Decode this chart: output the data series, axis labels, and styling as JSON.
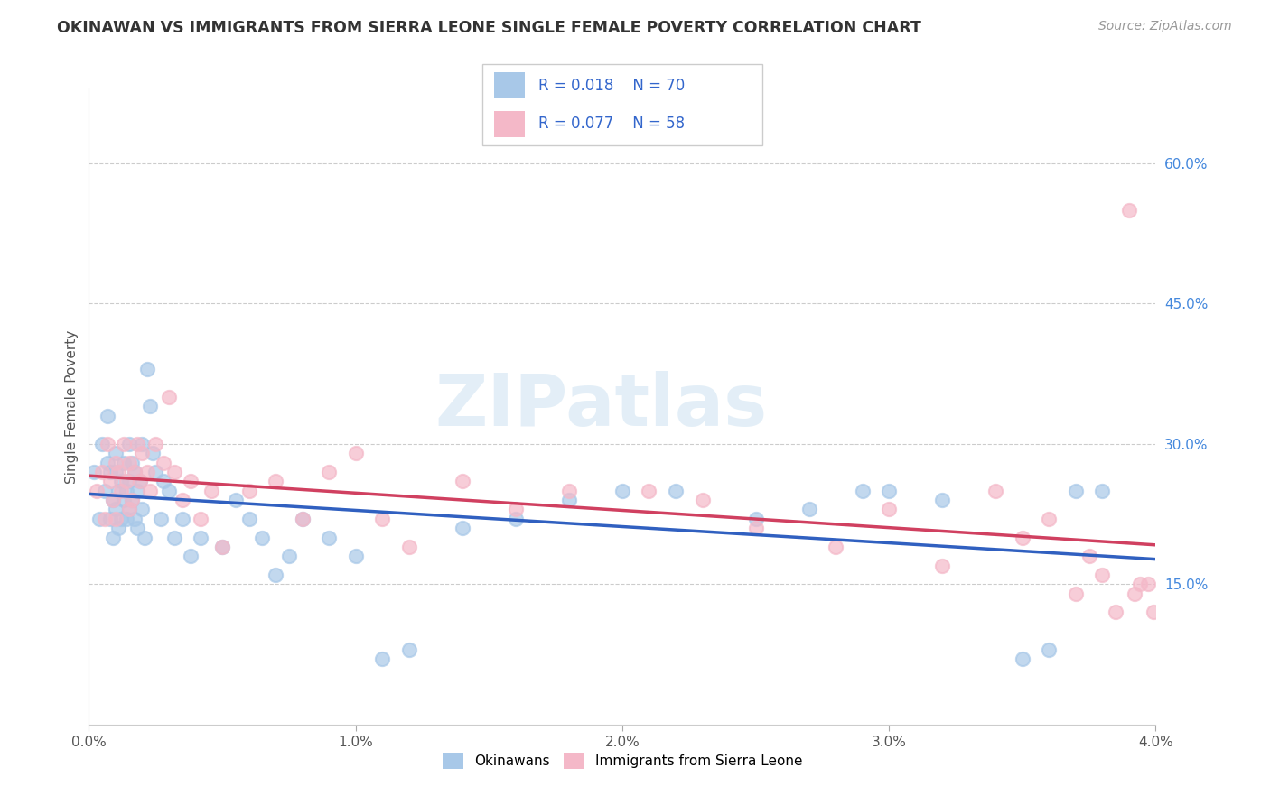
{
  "title": "OKINAWAN VS IMMIGRANTS FROM SIERRA LEONE SINGLE FEMALE POVERTY CORRELATION CHART",
  "source_text": "Source: ZipAtlas.com",
  "ylabel": "Single Female Poverty",
  "watermark": "ZIPatlas",
  "legend_r1": "R = 0.018",
  "legend_n1": "N = 70",
  "legend_r2": "R = 0.077",
  "legend_n2": "N = 58",
  "color_blue": "#a8c8e8",
  "color_pink": "#f4b8c8",
  "line_color_blue": "#3060c0",
  "line_color_pink": "#d04060",
  "xlim": [
    0.0,
    4.0
  ],
  "ylim": [
    0.0,
    68.0
  ],
  "xtick_labels": [
    "0.0%",
    "1.0%",
    "2.0%",
    "3.0%",
    "4.0%"
  ],
  "xtick_vals": [
    0.0,
    1.0,
    2.0,
    3.0,
    4.0
  ],
  "ytick_right_labels": [
    "15.0%",
    "30.0%",
    "45.0%",
    "60.0%"
  ],
  "ytick_right_vals": [
    15.0,
    30.0,
    45.0,
    60.0
  ],
  "blue_x": [
    0.02,
    0.04,
    0.05,
    0.06,
    0.07,
    0.07,
    0.08,
    0.08,
    0.09,
    0.09,
    0.1,
    0.1,
    0.1,
    0.11,
    0.11,
    0.12,
    0.12,
    0.13,
    0.13,
    0.14,
    0.14,
    0.15,
    0.15,
    0.15,
    0.16,
    0.16,
    0.17,
    0.17,
    0.18,
    0.18,
    0.19,
    0.2,
    0.2,
    0.21,
    0.22,
    0.23,
    0.24,
    0.25,
    0.27,
    0.28,
    0.3,
    0.32,
    0.35,
    0.38,
    0.42,
    0.5,
    0.55,
    0.6,
    0.65,
    0.7,
    0.75,
    0.8,
    0.9,
    1.0,
    1.1,
    1.2,
    1.4,
    1.6,
    1.8,
    2.0,
    2.2,
    2.5,
    2.7,
    2.9,
    3.0,
    3.2,
    3.5,
    3.6,
    3.7,
    3.8
  ],
  "blue_y": [
    27.0,
    22.0,
    30.0,
    25.0,
    33.0,
    28.0,
    22.0,
    27.0,
    24.0,
    20.0,
    29.0,
    23.0,
    27.0,
    25.0,
    21.0,
    26.0,
    22.0,
    28.0,
    24.0,
    25.0,
    22.0,
    30.0,
    26.0,
    23.0,
    28.0,
    24.0,
    27.0,
    22.0,
    25.0,
    21.0,
    26.0,
    30.0,
    23.0,
    20.0,
    38.0,
    34.0,
    29.0,
    27.0,
    22.0,
    26.0,
    25.0,
    20.0,
    22.0,
    18.0,
    20.0,
    19.0,
    24.0,
    22.0,
    20.0,
    16.0,
    18.0,
    22.0,
    20.0,
    18.0,
    7.0,
    8.0,
    21.0,
    22.0,
    24.0,
    25.0,
    25.0,
    22.0,
    23.0,
    25.0,
    25.0,
    24.0,
    7.0,
    8.0,
    25.0,
    25.0
  ],
  "pink_x": [
    0.03,
    0.05,
    0.06,
    0.07,
    0.08,
    0.09,
    0.1,
    0.1,
    0.11,
    0.12,
    0.13,
    0.14,
    0.15,
    0.15,
    0.16,
    0.17,
    0.18,
    0.19,
    0.2,
    0.22,
    0.23,
    0.25,
    0.28,
    0.3,
    0.32,
    0.35,
    0.38,
    0.42,
    0.46,
    0.5,
    0.6,
    0.7,
    0.8,
    0.9,
    1.0,
    1.1,
    1.2,
    1.4,
    1.6,
    1.8,
    2.1,
    2.3,
    2.5,
    2.8,
    3.0,
    3.2,
    3.4,
    3.5,
    3.6,
    3.7,
    3.75,
    3.8,
    3.85,
    3.9,
    3.92,
    3.94,
    3.97,
    3.99
  ],
  "pink_y": [
    25.0,
    27.0,
    22.0,
    30.0,
    26.0,
    24.0,
    28.0,
    22.0,
    27.0,
    25.0,
    30.0,
    26.0,
    28.0,
    23.0,
    24.0,
    27.0,
    30.0,
    26.0,
    29.0,
    27.0,
    25.0,
    30.0,
    28.0,
    35.0,
    27.0,
    24.0,
    26.0,
    22.0,
    25.0,
    19.0,
    25.0,
    26.0,
    22.0,
    27.0,
    29.0,
    22.0,
    19.0,
    26.0,
    23.0,
    25.0,
    25.0,
    24.0,
    21.0,
    19.0,
    23.0,
    17.0,
    25.0,
    20.0,
    22.0,
    14.0,
    18.0,
    16.0,
    12.0,
    55.0,
    14.0,
    15.0,
    15.0,
    12.0
  ]
}
